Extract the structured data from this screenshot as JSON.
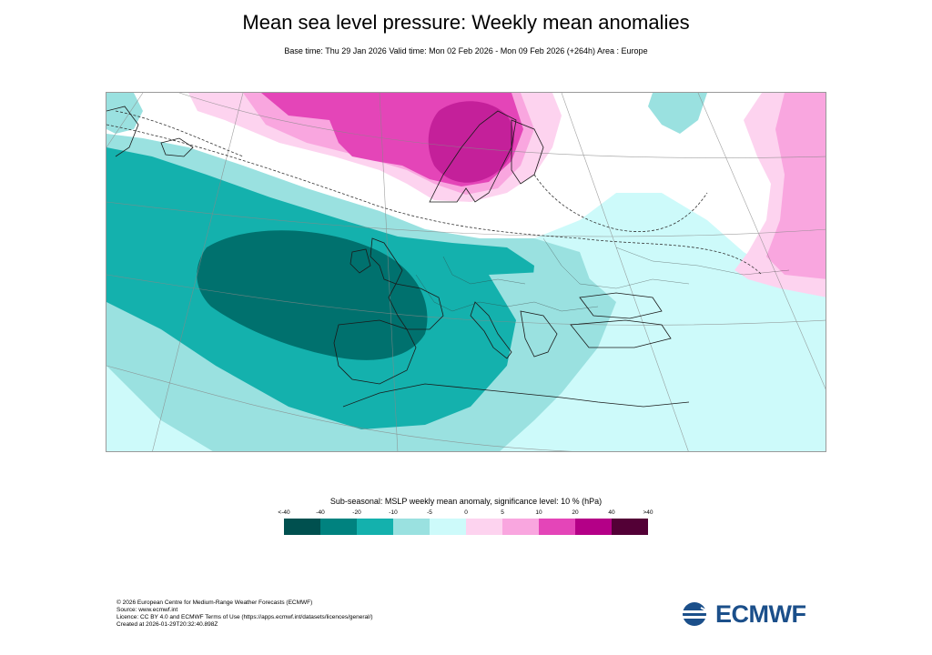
{
  "header": {
    "title": "Mean sea level pressure: Weekly mean anomalies",
    "subtitle": "Base time: Thu 29 Jan 2026 Valid time: Mon 02 Feb 2026 - Mon 09 Feb 2026 (+264h) Area : Europe"
  },
  "legend": {
    "title": "Sub-seasonal: MSLP weekly mean anomaly, significance level: 10 % (hPa)",
    "tick_labels": [
      "<-40",
      "-40",
      "-20",
      "-10",
      "-5",
      "0",
      "5",
      "10",
      "20",
      "40",
      ">40"
    ],
    "colors": [
      "#00504f",
      "#00827f",
      "#14b1ad",
      "#9ae1e0",
      "#cdfafa",
      "#fdd3ef",
      "#f9a6df",
      "#e445b8",
      "#b40087",
      "#530036"
    ]
  },
  "map": {
    "area": "Europe",
    "level_colors": {
      "strong_negative": "#00716e",
      "moderate_negative": "#14b1ad",
      "weak_negative": "#9ae1e0",
      "slight_negative": "#cdfafa",
      "not_significant": "#ffffff",
      "slight_positive": "#fdd3ef",
      "weak_positive": "#f9a6df",
      "moderate_positive": "#e445b8",
      "strong_positive": "#c4209a"
    },
    "features": {
      "deep_low_center": "west of Ireland / Bay of Biscay",
      "high_center": "Scandinavia"
    }
  },
  "footer": {
    "lines": [
      "© 2026 European Centre for Medium-Range Weather Forecasts (ECMWF)",
      "Source: www.ecmwf.int",
      "Licence: CC BY 4.0 and ECMWF Terms of Use (https://apps.ecmwf.int/datasets/licences/general/)",
      "Created at 2026-01-29T20:32:40.898Z"
    ]
  },
  "logo": {
    "text": "ECMWF"
  }
}
